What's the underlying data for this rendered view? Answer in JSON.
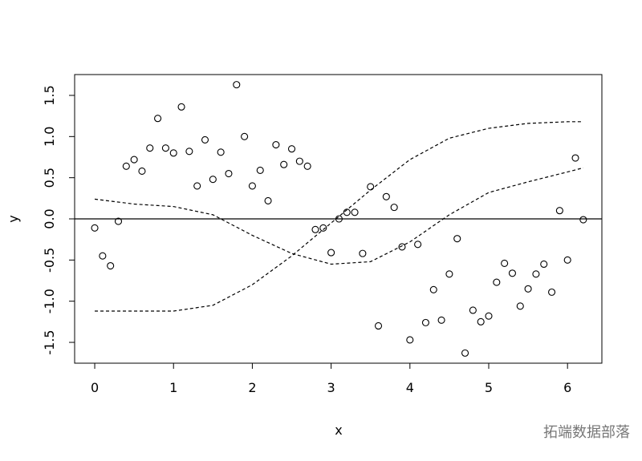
{
  "chart_data": {
    "type": "scatter",
    "xlabel": "x",
    "ylabel": "y",
    "x": [
      0,
      0.1,
      0.2,
      0.3,
      0.4,
      0.5,
      0.6,
      0.7,
      0.8,
      0.9,
      1,
      1.1,
      1.2,
      1.3,
      1.4,
      1.5,
      1.6,
      1.7,
      1.8,
      1.9,
      2,
      2.1,
      2.2,
      2.3,
      2.4,
      2.5,
      2.6,
      2.7,
      2.8,
      2.9,
      3,
      3.1,
      3.2,
      3.3,
      3.4,
      3.5,
      3.6,
      3.7,
      3.8,
      3.9,
      4,
      4.1,
      4.2,
      4.3,
      4.4,
      4.5,
      4.6,
      4.7,
      4.8,
      4.9,
      5,
      5.1,
      5.2,
      5.3,
      5.4,
      5.5,
      5.6,
      5.7,
      5.8,
      5.9,
      6,
      6.1,
      6.2
    ],
    "values": [
      -0.11,
      -0.45,
      -0.57,
      -0.03,
      0.64,
      0.72,
      0.58,
      0.86,
      1.22,
      0.86,
      0.8,
      1.36,
      0.82,
      0.4,
      0.96,
      0.48,
      0.81,
      0.55,
      1.63,
      1.0,
      0.4,
      0.59,
      0.22,
      0.9,
      0.66,
      0.85,
      0.7,
      0.64,
      -0.13,
      -0.11,
      -0.41,
      0.0,
      0.08,
      0.08,
      -0.42,
      0.39,
      -1.3,
      0.27,
      0.14,
      -0.34,
      -1.47,
      -0.31,
      -1.26,
      -0.86,
      -1.23,
      -0.67,
      -0.24,
      -1.63,
      -1.11,
      -1.25,
      -1.18,
      -0.77,
      -0.54,
      -0.66,
      -1.06,
      -0.85,
      -0.67,
      -0.55,
      -0.89,
      0.1,
      -0.5,
      0.74,
      -0.01
    ],
    "color": "#000000",
    "lines": {
      "x": [
        0,
        0.5,
        1,
        1.5,
        2,
        2.5,
        3,
        3.5,
        4,
        4.5,
        5,
        5.5,
        6,
        6.2
      ],
      "series": [
        {
          "values": [
            0.24,
            0.18,
            0.15,
            0.05,
            -0.2,
            -0.42,
            -0.55,
            -0.52,
            -0.28,
            0.05,
            0.32,
            0.45,
            0.57,
            0.62
          ]
        },
        {
          "values": [
            -1.12,
            -1.12,
            -1.12,
            -1.05,
            -0.8,
            -0.45,
            -0.05,
            0.35,
            0.72,
            0.98,
            1.1,
            1.16,
            1.18,
            1.18
          ]
        }
      ]
    },
    "hline": 0,
    "xlim": [
      -0.255,
      6.436
    ],
    "ylim": [
      -1.753,
      1.753
    ],
    "xticks": [
      0,
      1,
      2,
      3,
      4,
      5,
      6
    ],
    "yticks": [
      -1.5,
      {
        "value": -1.0,
        "label": "-1.0"
      },
      -0.5,
      {
        "value": 0.0,
        "label": "0.0"
      },
      0.5,
      {
        "value": 1.0,
        "label": "1.0"
      },
      1.5
    ],
    "watermark": "拓端数据部落"
  }
}
